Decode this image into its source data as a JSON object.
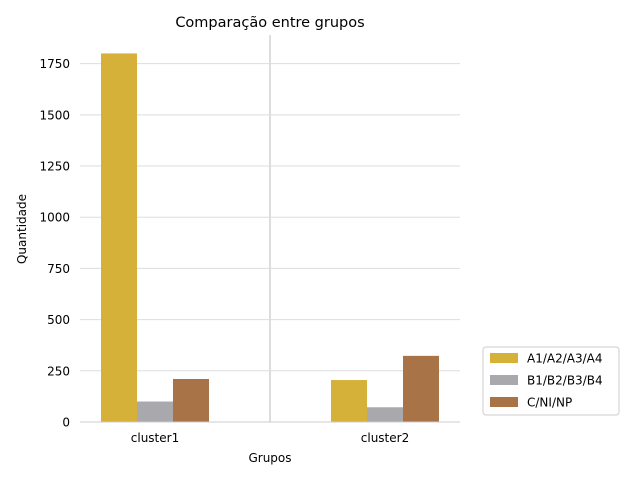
{
  "chart_data": {
    "type": "bar",
    "title": "Comparação entre grupos",
    "xlabel": "Grupos",
    "ylabel": "Quantidade",
    "categories": [
      "cluster1",
      "cluster2"
    ],
    "series": [
      {
        "name": "A1/A2/A3/A4",
        "color": "#d6b13a",
        "values": [
          1800,
          205
        ]
      },
      {
        "name": "B1/B2/B3/B4",
        "color": "#a9a8ad",
        "values": [
          100,
          72
        ]
      },
      {
        "name": "C/NI/NP",
        "color": "#a87447",
        "values": [
          210,
          323
        ]
      }
    ],
    "ylim": [
      0,
      1890
    ],
    "yticks": [
      0,
      250,
      500,
      750,
      1000,
      1250,
      1500,
      1750
    ],
    "grid": "horizontal",
    "legend_position": "outside-right"
  }
}
